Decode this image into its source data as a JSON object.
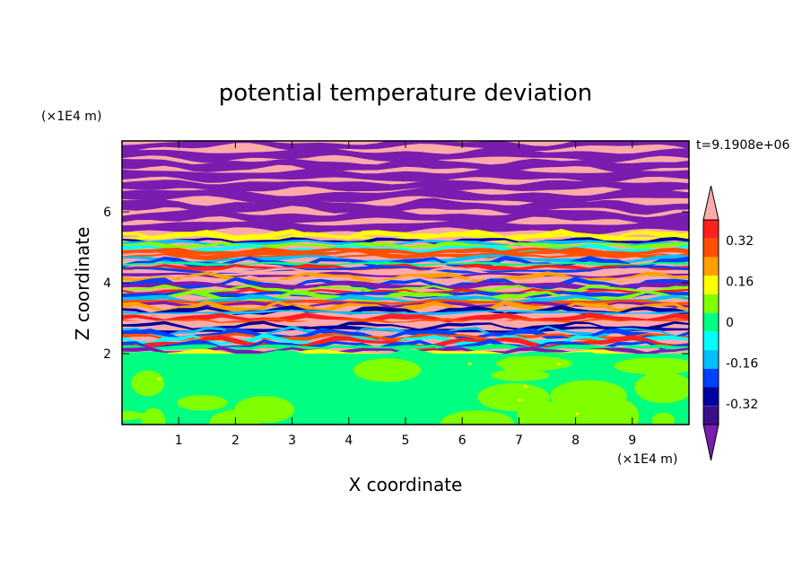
{
  "chart_data": {
    "type": "heatmap",
    "title": "potential temperature deviation",
    "xlabel": "X coordinate",
    "ylabel": "Z coordinate",
    "x_unit": "(×1E4 m)",
    "y_unit": "(×1E4 m)",
    "time_label": "t=9.1908e+06",
    "xlim": [
      0,
      10
    ],
    "ylim": [
      0,
      8
    ],
    "x_ticks": [
      "1",
      "2",
      "3",
      "4",
      "5",
      "6",
      "7",
      "8",
      "9"
    ],
    "y_ticks": [
      "2",
      "4",
      "6"
    ],
    "colorbar": {
      "levels": [
        -0.4,
        -0.32,
        -0.24,
        -0.16,
        -0.08,
        0,
        0.08,
        0.16,
        0.24,
        0.32,
        0.4
      ],
      "labels": [
        "-0.32",
        "-0.16",
        "0",
        "0.16",
        "0.32"
      ],
      "label_values": [
        -0.32,
        -0.16,
        0,
        0.16,
        0.32
      ],
      "colors": [
        "#3a0f8a",
        "#0000a0",
        "#0040ff",
        "#00bfff",
        "#00ffff",
        "#00ff80",
        "#80ff00",
        "#ffff00",
        "#ffa000",
        "#ff5000",
        "#ff2020"
      ],
      "over_color": "#ffaaaa",
      "under_color": "#7a1cb0"
    }
  }
}
